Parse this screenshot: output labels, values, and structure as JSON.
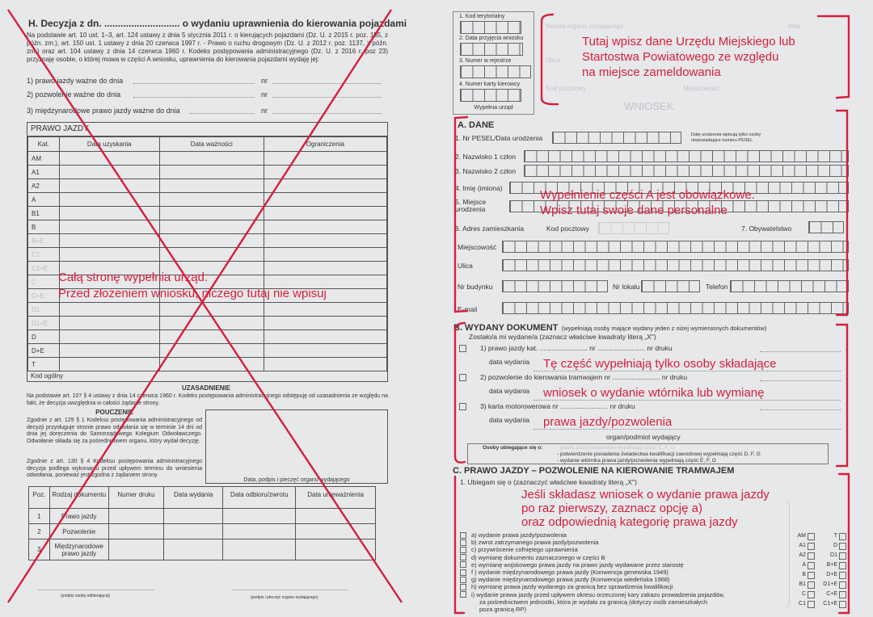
{
  "left_page": {
    "title": "H. Decyzja z dn. ............................ o wydaniu uprawnienia do kierowania pojazdami",
    "intro": "Na podstawie art. 10 ust. 1–3, art. 124 ustawy z dnia 5 stycznia 2011 r. o kierujących pojazdami (Dz. U. z 2015 r. poz. 155, z późn. zm.), art. 150 ust. 1 ustawy z dnia 20 czerwca 1997 r. - Prawo o ruchu drogowym (Dz. U. z 2012 r. poz. 1137, z późn. zm.) oraz art. 104 ustawy z dnia 14 czerwca 1960 r. Kodeks postępowania administracyjnego (Dz. U. z 2016 r. poz 23) przyznaję osobie, o której mowa w części A wniosku, uprawnienia do kierowania pojazdami wydaję jej:",
    "lines": [
      {
        "label": "1) prawo jazdy ważne do dnia",
        "nr": "nr"
      },
      {
        "label": "2) pozwolenie ważne do dnia",
        "nr": "nr"
      },
      {
        "label": "3) międzynarodowe prawo jazdy ważne do dnia",
        "nr": "nr"
      }
    ],
    "license_table": {
      "title": "PRAWO JAZDY",
      "headers": [
        "Kat.",
        "Data uzyskania",
        "Data ważności",
        "Ograniczenia"
      ],
      "categories": [
        "AM",
        "A1",
        "A2",
        "A",
        "B1",
        "B",
        "B+E",
        "C1",
        "C1+E",
        "C",
        "C+E",
        "D1",
        "D1+E",
        "D",
        "D+E",
        "T"
      ],
      "footer": "Kod ogólny"
    },
    "justification_heading": "UZASADNIENIE",
    "justification": "Na podstawie art. 107 § 4 ustawy z dnia 14 czerwca 1960 r. Kodeks postępowania administracyjnego odstępuję od uzasadnienia ze względu na fakt, że decyzja uwzględnia w całości żądanie strony.",
    "instruction_heading": "POUCZENIE",
    "instruction_1": "Zgodnie z art. 129 § 1 Kodeksu postępowania administracyjnego od decyzji przysługuje stronie prawo odwołania się w terminie 14 dni od dnia jej doręczenia do Samorządowego Kolegium Odwoławczego. Odwołanie składa się za pośrednictwem organu, który wydał decyzję.",
    "instruction_2": "Zgodnie z art. 130 § 4 Kodeksu postępowania administracyjnego decyzja podlega wykonaniu przed upływem terminu do wniesienia odwołania, ponieważ jest zgodna z żądaniem strony.",
    "stamp_caption": "Data, podpis i pieczęć organu wydającego",
    "docs_table": {
      "headers": [
        "Poz.",
        "Rodzaj dokumentu",
        "Numer druku",
        "Data wydania",
        "Data odbioru/zwrotu",
        "Data unieważnienia"
      ],
      "rows": [
        [
          "1",
          "Prawo jazdy"
        ],
        [
          "2",
          "Pozwolenie"
        ],
        [
          "3",
          "Międzynarodowe prawo jazdy"
        ]
      ]
    },
    "sign_left": "(podpis osoby odbierającej)",
    "sign_right": "(podpis i pieczęć organu wydającego)",
    "annotation": [
      "Całą stronę wypełnia urząd.",
      "Przed złożeniem wniosku, niczego tutaj nie wpisuj"
    ]
  },
  "right_page": {
    "office_box": {
      "fields": [
        "1. Kod terytorialny",
        "2. Data przyjęcia wniosku",
        "3. Numer w rejestrze",
        "4. Numer karty kierowcy"
      ],
      "caption": "Wypełnia urząd"
    },
    "authority": {
      "name_label": "Nazwa organu wydającego",
      "street_label": "Ulica",
      "postal_label": "Kod pocztowy",
      "city_label": "Miejscowość",
      "date_label": "dnia"
    },
    "annotation_header": [
      "Tutaj wpisz dane Urzędu Miejskiego lub",
      "Startostwa Powiatowego ze względu",
      "na miejsce zameldowania"
    ],
    "form_title": "WNIOSEK",
    "section_a": {
      "heading": "A. DANE",
      "pesel": "1. Nr PESEL/Data urodzenia",
      "pesel_note": "Datę urodzenia wpisują tylko osoby nieposiadające numeru PESEL",
      "surname1": "2. Nazwisko 1 człon",
      "surname2": "3. Nazwisko 2 człon",
      "first_name": "4. Imię (imiona)",
      "birthplace": "5. Miejsce urodzenia",
      "address": "6. Adres zamieszkania",
      "postal": "Kod pocztowy",
      "citizenship": "7. Obywatelstwo",
      "city": "Miejscowość",
      "street": "Ulica",
      "building": "Nr budynku",
      "flat": "Nr lokalu",
      "phone": "Telefon",
      "email": "E-mail",
      "annotation": [
        "Wypełnienie części A jest obowiązkowe.",
        "Wpisz tutaj swoje dane personalne"
      ]
    },
    "section_b": {
      "heading": "B. WYDANY DOKUMENT",
      "heading_note": "(wypełniają osoby mające wydany jeden z niżej wymienionych dokumentów)",
      "intro": "Zostało/a mi wydane/a (zaznacz właściwe kwadraty literą „X\")",
      "items": [
        "1) prawo jazdy kat. ......................... nr ......................... nr druku",
        "2) pozwolenie do kierowania tramwajem nr ......................... nr druku",
        "3) karta motorowerowa nr ......................... nr druku"
      ],
      "date_label": "data wydania",
      "issuer_label": "organ/podmiot wydający",
      "note_label": "Osoby ubiegające się o:",
      "notes": [
        "- prawo jazdy/pozwolenie wypełniają część C, F, G",
        "- potwierdzenie posiadania świadectwa kwalifikacji zawodowej wypełniają część D, F, G",
        "- wydanie wtórnika prawa jazdy/pozwolenia wypełniają część E, F, G"
      ],
      "annotation": [
        "Tę część wypełniają tylko osoby składające",
        "wniosek o wydanie wtórnika lub wymianę",
        "prawa jazdy/pozwolenia"
      ]
    },
    "section_c": {
      "heading": "C. PRAWO JAZDY – POZWOLENIE NA KIEROWANIE TRAMWAJEM",
      "intro": "1. Ubiegam się o (zaznaczyć właściwe kwadraty literą „X\")",
      "options": [
        "a) wydanie prawa jazdy/pozwolenia",
        "b) zwrot zatrzymanego prawa jazdy/pozwolenia",
        "c) przywrócenie cofniętego uprawnienia",
        "d) wymianę dokumentu zaznaczonego w części B",
        "e) wymianę wojskowego prawa jazdy na prawo jazdy wydawane przez starostę",
        "f ) wydanie międzynarodowego prawa jazdy (Konwencja genewska 1949)",
        "g) wydanie międzynarodowego prawa jazdy (Konwencja wiedeńska 1968)",
        "h) wymianę prawa jazdy wydanego za granicą bez sprawdzenia kwalifikacji",
        "i) wydanie prawa jazdy przed upływem okresu orzeczonej kary zakazu prowadzenia pojazdów,"
      ],
      "option_cont": [
        "za pośrednictwem jednostki, która je wydała za granicą (dotyczy osób zamieszkałych",
        "poza granicą RP)"
      ],
      "categories_left": [
        "AM",
        "A1",
        "A2",
        "A",
        "B",
        "B1",
        "C",
        "C1"
      ],
      "categories_right": [
        "T",
        "D",
        "D1",
        "B+E",
        "D+E",
        "D1+E",
        "C+E",
        "C1+E"
      ],
      "annotation": [
        "Jeśli składasz wniosek o wydanie prawa jazdy",
        "po raz pierwszy, zaznacz opcję a)",
        "oraz odpowiednią kategorię prawa jazdy"
      ]
    }
  },
  "colors": {
    "annotation_red": "#d61f3b",
    "paper": "#e7e8ea"
  }
}
